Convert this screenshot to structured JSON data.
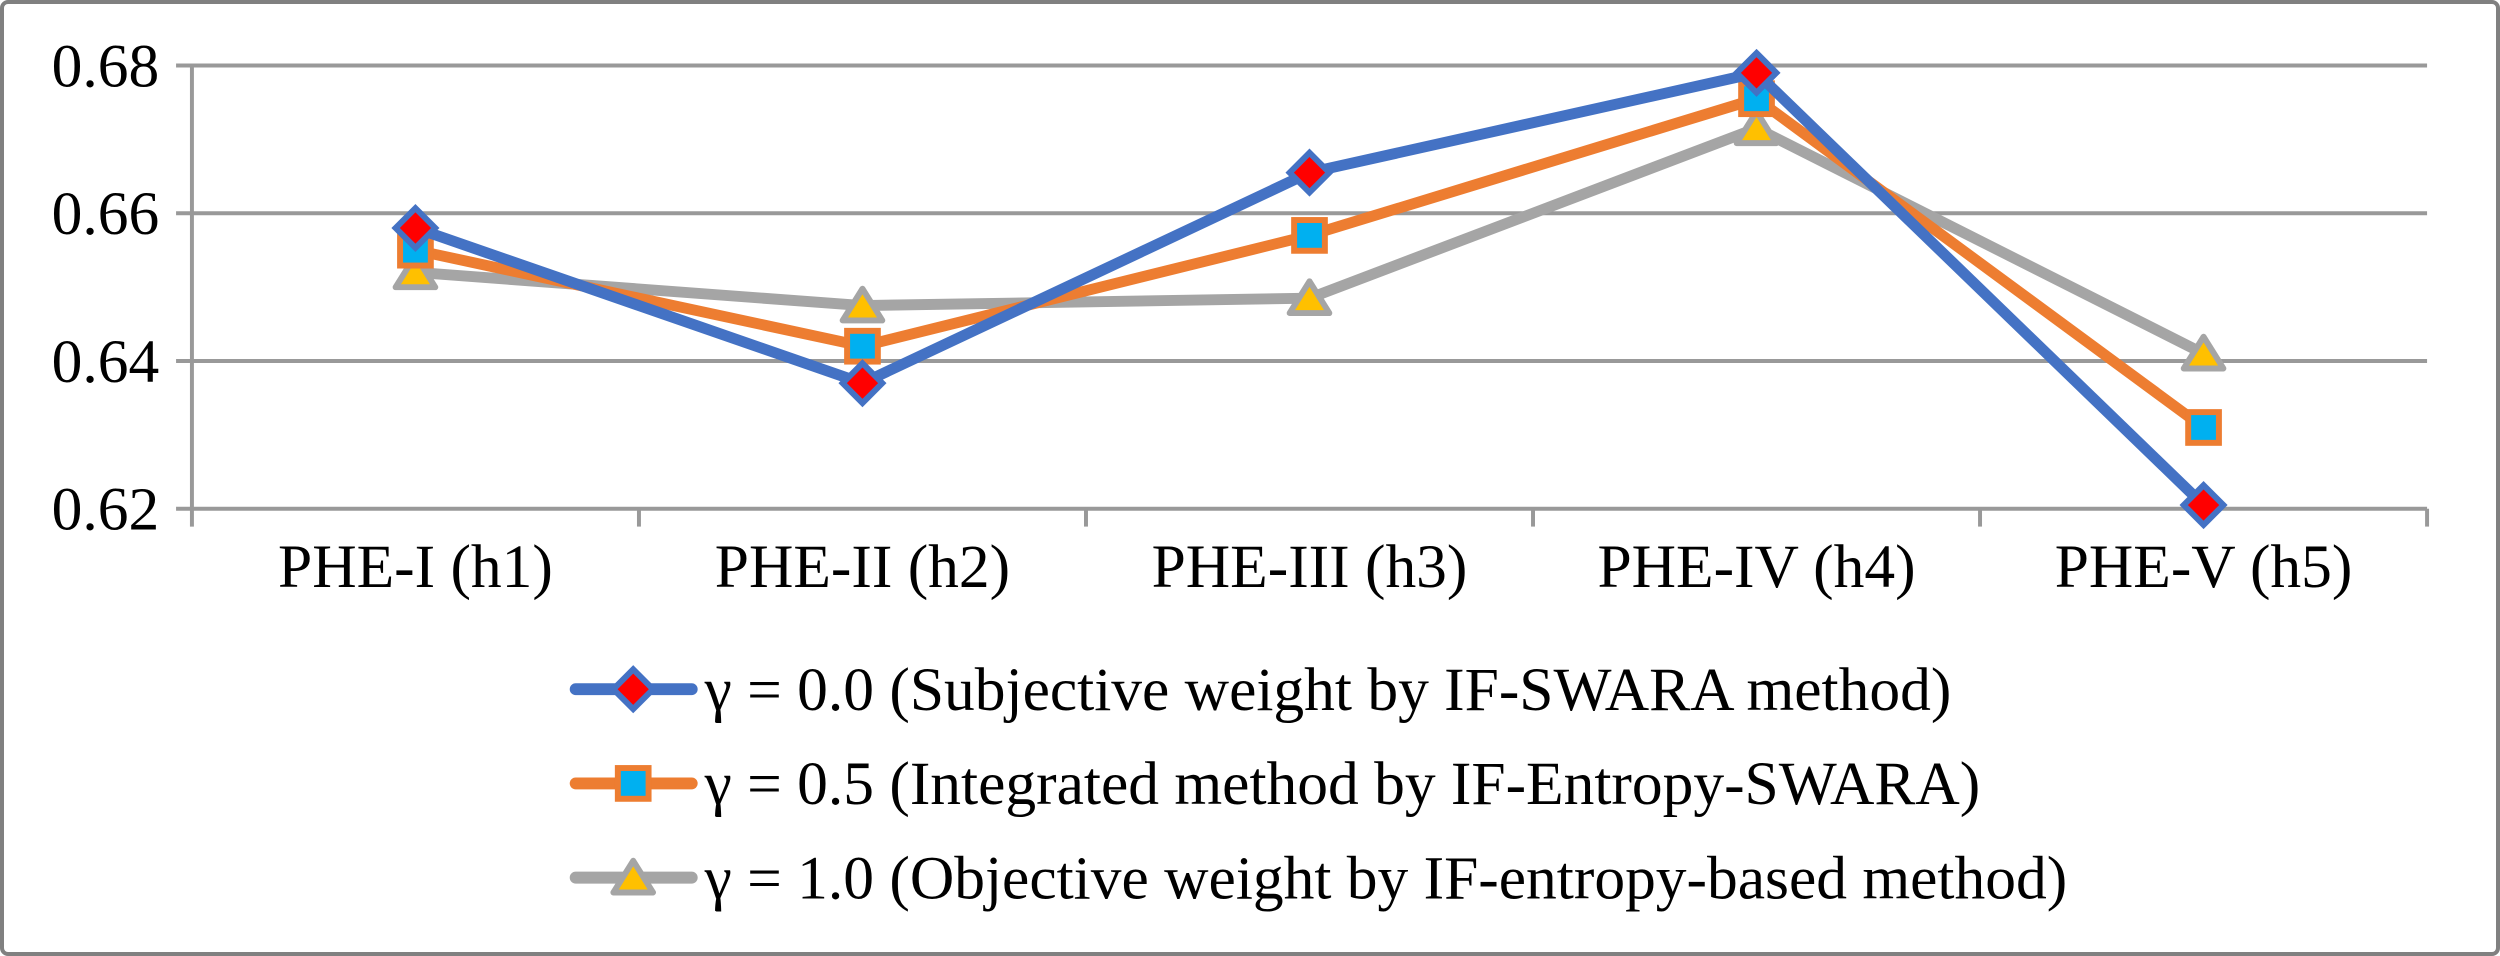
{
  "chart_data": {
    "type": "line",
    "title": "",
    "xlabel": "",
    "ylabel": "",
    "categories": [
      "PHE-I (h1)",
      "PHE-II (h2)",
      "PHE-III (h3)",
      "PHE-IV (h4)",
      "PHE-V (h5)"
    ],
    "series": [
      {
        "name": "γ = 0.0 (Subjective weight by IF-SWARA method)",
        "values": [
          0.658,
          0.637,
          0.6655,
          0.679,
          0.6205
        ],
        "line_color": "#4472C4",
        "marker": "diamond",
        "marker_fill": "#FF0000",
        "marker_border": "#4472C4"
      },
      {
        "name": "γ = 0.5 (Integrated method by IF-Entropy-SWARA)",
        "values": [
          0.655,
          0.642,
          0.657,
          0.6755,
          0.631
        ],
        "line_color": "#ED7D31",
        "marker": "square",
        "marker_fill": "#00B0F0",
        "marker_border": "#ED7D31"
      },
      {
        "name": "γ = 1.0 (Objective weight by IF-entropy-based method)",
        "values": [
          0.652,
          0.6475,
          0.6485,
          0.6715,
          0.641
        ],
        "line_color": "#A5A5A5",
        "marker": "triangle",
        "marker_fill": "#FFC000",
        "marker_border": "#A5A5A5"
      }
    ],
    "ylim": [
      0.62,
      0.68
    ],
    "yticks": [
      0.62,
      0.64,
      0.66,
      0.68
    ],
    "ytick_labels": [
      "0.62",
      "0.64",
      "0.66",
      "0.68"
    ],
    "grid": true,
    "legend_position": "bottom",
    "gridline_color": "#999999",
    "axis_color": "#999999",
    "text_color": "#000000",
    "background": "#FFFFFF",
    "frame_color": "#808080"
  }
}
